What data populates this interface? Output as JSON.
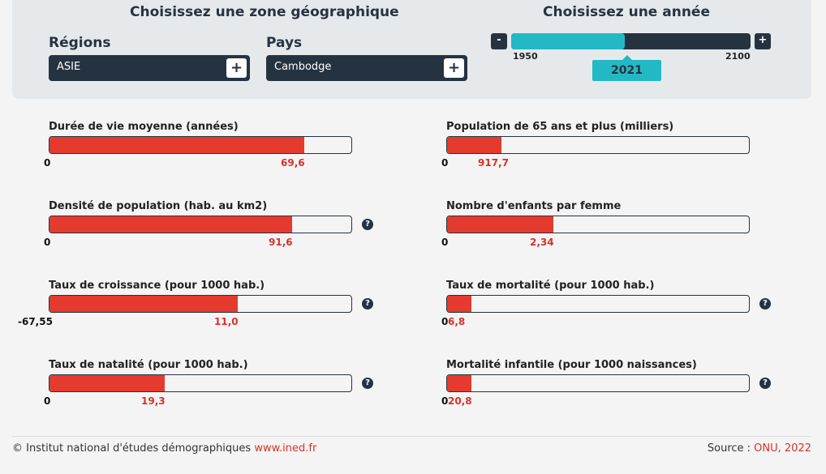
{
  "zone": {
    "heading": "Choisissez une zone géographique",
    "regions_label": "Régions",
    "region_value": "ASIE",
    "pays_label": "Pays",
    "pays_value": "Cambodge",
    "plus": "+"
  },
  "year": {
    "heading": "Choisissez une année",
    "minus": "-",
    "plus": "+",
    "min": "1950",
    "max": "2100",
    "current": "2021",
    "position_fraction": 0.474
  },
  "indicators": [
    {
      "title": "Durée de vie moyenne (années)",
      "min": "0",
      "value": "69,6",
      "fill_fraction": 0.84,
      "help": ""
    },
    {
      "title": "Population de 65 ans et plus (milliers)",
      "min": "0",
      "value": "917,7",
      "fill_fraction": 0.18,
      "help": ""
    },
    {
      "title": "Densité de population (hab. au km2)",
      "min": "0",
      "value": "91,6",
      "fill_fraction": 0.8,
      "help": "?"
    },
    {
      "title": "Nombre d'enfants par femme",
      "min": "0",
      "value": "2,34",
      "fill_fraction": 0.35,
      "help": ""
    },
    {
      "title": "Taux de croissance (pour 1000 hab.)",
      "min": "-67,55",
      "value": "11,0",
      "fill_fraction": 0.62,
      "help": "?"
    },
    {
      "title": "Taux de mortalité (pour 1000 hab.)",
      "min": "0",
      "value": "6,8",
      "fill_fraction": 0.08,
      "help": "?"
    },
    {
      "title": "Taux de natalité (pour 1000 hab.)",
      "min": "0",
      "value": "19,3",
      "fill_fraction": 0.38,
      "help": "?"
    },
    {
      "title": "Mortalité infantile (pour 1000 naissances)",
      "min": "0",
      "value": "20,8",
      "fill_fraction": 0.08,
      "help": "?"
    }
  ],
  "footer": {
    "left_text": "© Institut national d'études démographiques ",
    "left_link": "www.ined.fr",
    "right_text": "Source : ",
    "right_link": "ONU, 2022"
  },
  "colors": {
    "bar_fill": "#e53a2e",
    "accent": "#22b9c4",
    "dark": "#253341",
    "value_text": "#d7322a"
  }
}
